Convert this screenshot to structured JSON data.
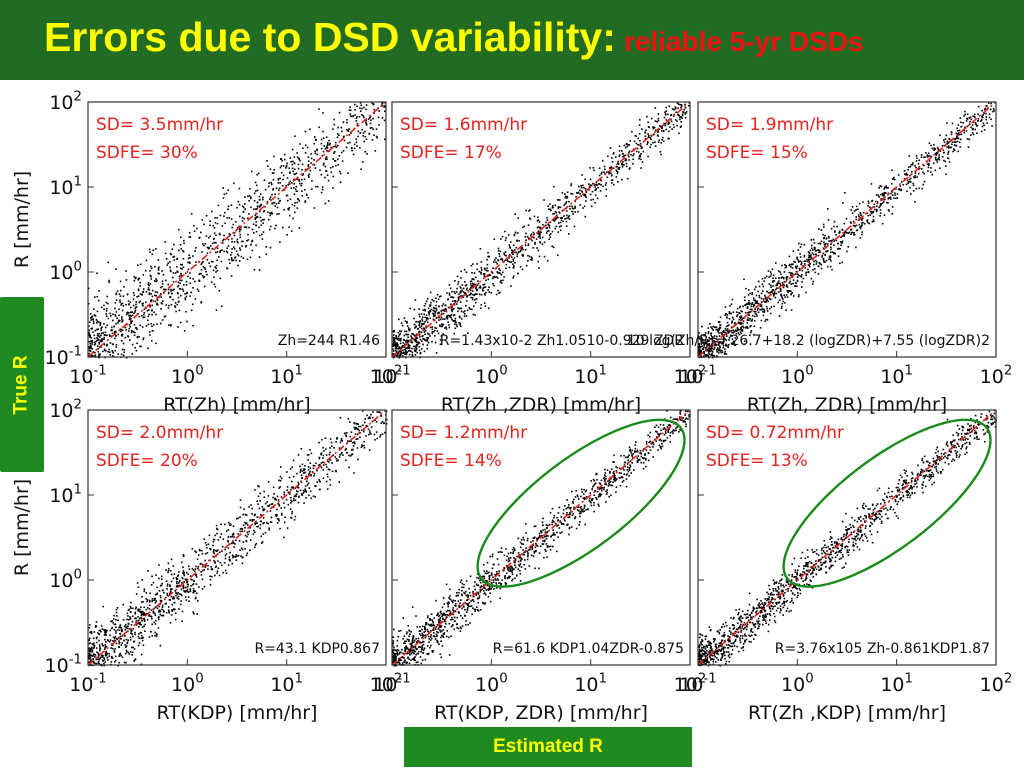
{
  "header": {
    "title": "Errors due to DSD variability:",
    "subtitle": "reliable 5-yr DSDs",
    "bg_color": "#226b22",
    "title_color": "#ffff00",
    "subtitle_color": "#ee1111"
  },
  "side_label": "True R",
  "bottom_label": "Estimated R",
  "colors": {
    "points": "#000000",
    "one_to_one": "#e8221c",
    "stats": "#e8221c",
    "highlight": "#1a8a1a",
    "var_blue": "#1a1aee"
  },
  "chart_data": [
    {
      "type": "scatter",
      "scale": "log-log",
      "xlim": [
        0.1,
        100
      ],
      "ylim": [
        0.1,
        100
      ],
      "x_ticks": [
        "10-1",
        "100",
        "101",
        "102"
      ],
      "y_ticks": [
        "10-1",
        "100",
        "101",
        "102"
      ],
      "xlabel": "RT(Zh) [mm/hr]",
      "ylabel": "R [mm/hr]",
      "stats": [
        "SD= 3.5mm/hr",
        "SDFE= 30%"
      ],
      "relation": "Zh=244 R1.46",
      "spread": 0.3,
      "x_max": 100,
      "highlighted": false
    },
    {
      "type": "scatter",
      "scale": "log-log",
      "xlim": [
        0.1,
        100
      ],
      "ylim": [
        0.1,
        100
      ],
      "x_ticks": [
        "10-1",
        "100",
        "101",
        "102"
      ],
      "y_ticks": [],
      "xlabel": "RT(Zh ,ZDR) [mm/hr]",
      "ylabel": "",
      "stats": [
        "SD= 1.6mm/hr",
        "SDFE= 17%"
      ],
      "relation": "R=1.43x10-2 Zh1.0510-0.929 ZDR",
      "spread": 0.17,
      "x_max": 100,
      "highlighted": false
    },
    {
      "type": "scatter",
      "scale": "log-log",
      "xlim": [
        0.1,
        100
      ],
      "ylim": [
        0.1,
        100
      ],
      "x_ticks": [
        "10-1",
        "100",
        "101",
        "102"
      ],
      "y_ticks": [],
      "xlabel": "RT(Zh, ZDR) [mm/hr]",
      "ylabel": "",
      "stats": [
        "SD= 1.9mm/hr",
        "SDFE= 15%"
      ],
      "relation": "10 log(Zh/R)= 26.7+18.2 (logZDR)+7.55 (logZDR)2",
      "spread": 0.15,
      "x_max": 100,
      "highlighted": false
    },
    {
      "type": "scatter",
      "scale": "log-log",
      "xlim": [
        0.1,
        100
      ],
      "ylim": [
        0.1,
        100
      ],
      "x_ticks": [
        "10-1",
        "100",
        "101",
        "102"
      ],
      "y_ticks": [
        "10-1",
        "100",
        "101",
        "102"
      ],
      "xlabel": "RT(KDP) [mm/hr]",
      "ylabel": "R [mm/hr]",
      "stats": [
        "SD= 2.0mm/hr",
        "SDFE= 20%"
      ],
      "relation": "R=43.1 KDP0.867",
      "spread": 0.2,
      "x_max": 100,
      "highlighted": false
    },
    {
      "type": "scatter",
      "scale": "log-log",
      "xlim": [
        0.1,
        100
      ],
      "ylim": [
        0.1,
        100
      ],
      "x_ticks": [
        "10-1",
        "100",
        "101",
        "102"
      ],
      "y_ticks": [],
      "xlabel": "RT(KDP, ZDR) [mm/hr]",
      "ylabel": "",
      "stats": [
        "SD= 1.2mm/hr",
        "SDFE= 14%"
      ],
      "relation": "R=61.6 KDP1.04ZDR-0.875",
      "spread": 0.14,
      "x_max": 100,
      "highlighted": true
    },
    {
      "type": "scatter",
      "scale": "log-log",
      "xlim": [
        0.1,
        100
      ],
      "ylim": [
        0.1,
        100
      ],
      "x_ticks": [
        "10-1",
        "100",
        "101",
        "102"
      ],
      "y_ticks": [],
      "xlabel": "RT(Zh ,KDP) [mm/hr]",
      "ylabel": "",
      "stats": [
        "SD= 0.72mm/hr",
        "SDFE= 13%"
      ],
      "relation": "R=3.76x105 Zh-0.861KDP1.87",
      "spread": 0.13,
      "x_max": 100,
      "highlighted": true
    }
  ]
}
